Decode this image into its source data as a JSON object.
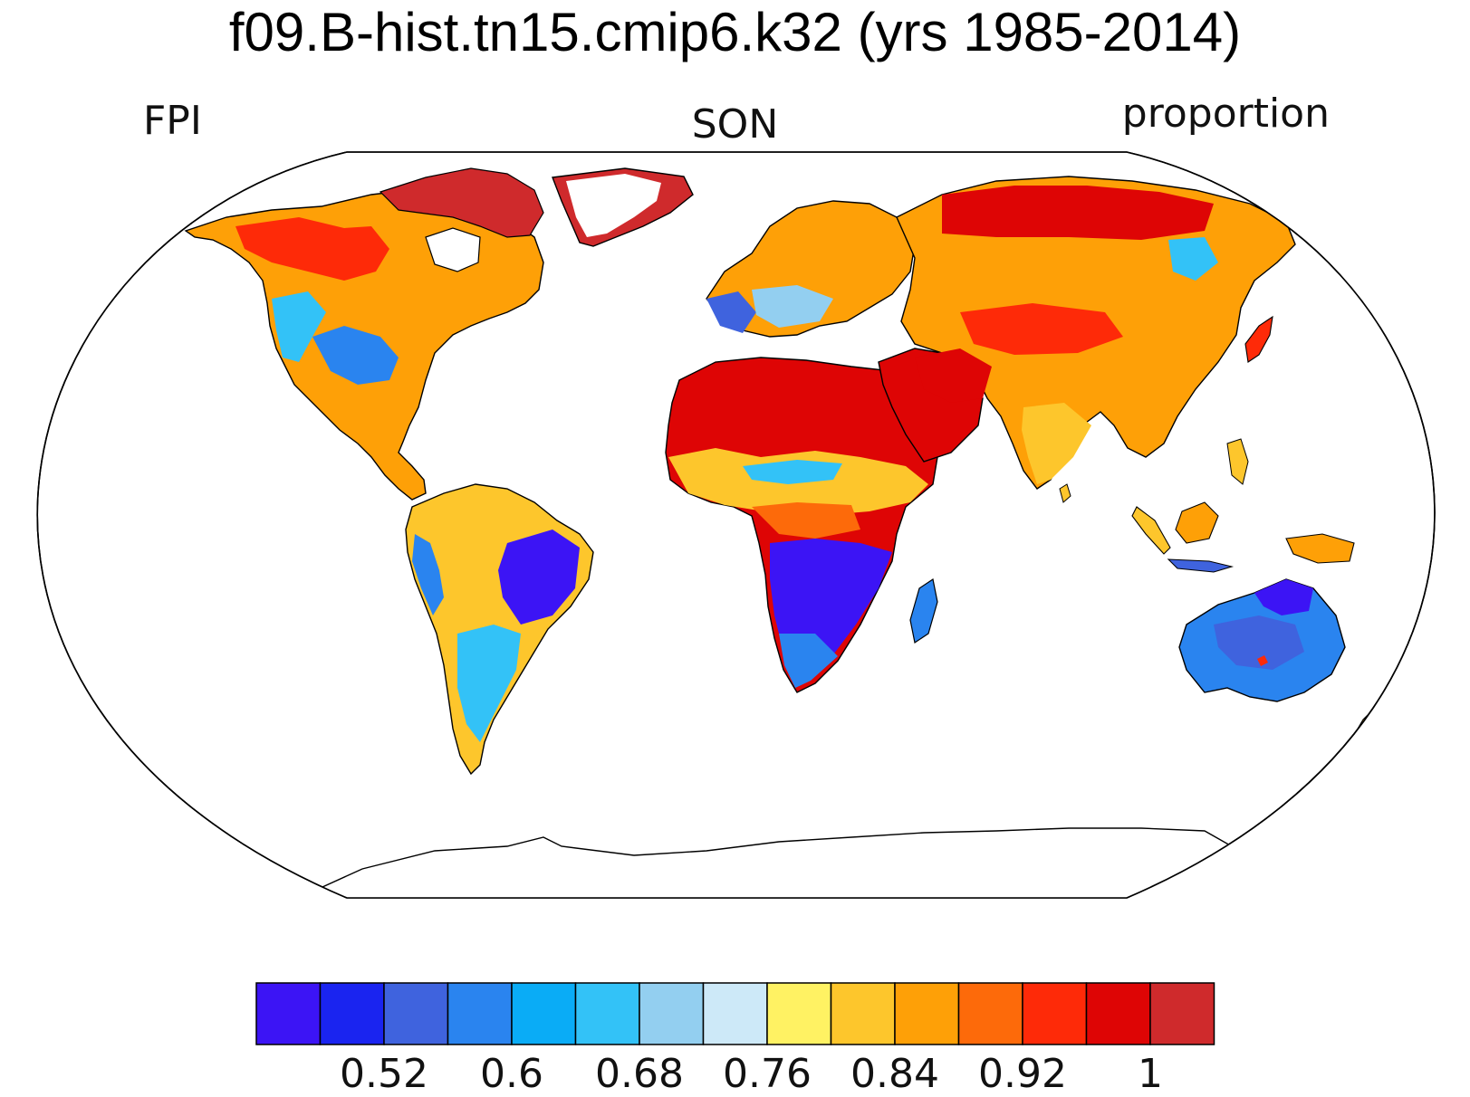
{
  "title": "f09.B-hist.tn15.cmip6.k32 (yrs 1985-2014)",
  "left_label": "FPI",
  "center_label": "SON",
  "right_label": "proportion",
  "colorbar": {
    "colors": [
      "#3c14f5",
      "#1a24f0",
      "#3f63de",
      "#2a84ef",
      "#0aacf6",
      "#33c2f7",
      "#93cff0",
      "#cde9f8",
      "#fff263",
      "#fdc62c",
      "#fea007",
      "#fd6a0a",
      "#fe2a08",
      "#de0505",
      "#cf2a2c"
    ],
    "tick_labels": [
      "0.52",
      "0.6",
      "0.68",
      "0.76",
      "0.84",
      "0.92",
      "1"
    ],
    "tick_values": [
      0.52,
      0.6,
      0.68,
      0.76,
      0.84,
      0.92,
      1.0
    ],
    "levels": [
      0.48,
      0.52,
      0.56,
      0.6,
      0.64,
      0.68,
      0.72,
      0.76,
      0.8,
      0.84,
      0.88,
      0.92,
      0.96,
      1.0
    ]
  },
  "map": {
    "projection": "Robinson",
    "ocean_color": "#ffffff",
    "regions": [
      {
        "name": "Western US",
        "value": 0.65
      },
      {
        "name": "Central US",
        "value": 0.55
      },
      {
        "name": "Canada",
        "value": 0.95
      },
      {
        "name": "Greenland",
        "value": 1.0
      },
      {
        "name": "Amazon",
        "value": 0.86
      },
      {
        "name": "Eastern Brazil",
        "value": 0.5
      },
      {
        "name": "Southern South America",
        "value": 0.66
      },
      {
        "name": "Sahara",
        "value": 0.98
      },
      {
        "name": "Sahel",
        "value": 0.8
      },
      {
        "name": "Southern Africa",
        "value": 0.5
      },
      {
        "name": "Arabia",
        "value": 0.98
      },
      {
        "name": "Siberia",
        "value": 0.97
      },
      {
        "name": "Central Asia",
        "value": 0.9
      },
      {
        "name": "India",
        "value": 0.86
      },
      {
        "name": "Southeast Asia",
        "value": 0.87
      },
      {
        "name": "Australia",
        "value": 0.56
      },
      {
        "name": "Western Europe",
        "value": 0.62
      }
    ]
  }
}
